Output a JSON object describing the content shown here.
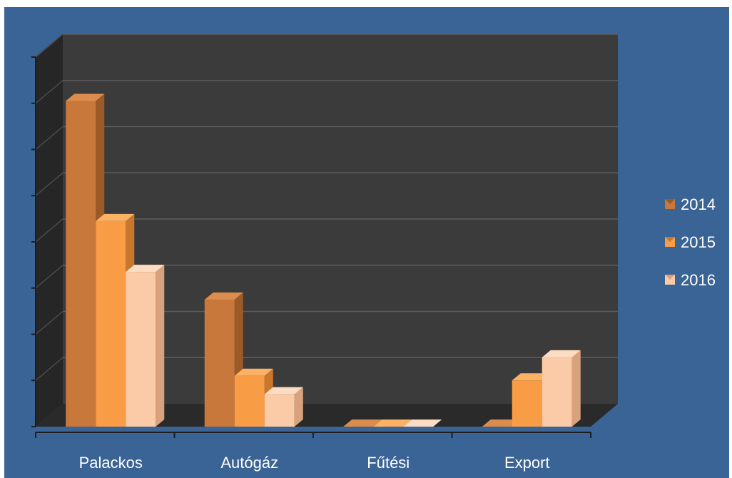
{
  "chart_data": {
    "type": "bar",
    "title": "",
    "xlabel": "",
    "ylabel": "",
    "categories": [
      "Palackos",
      "Autógáz",
      "Fűtési",
      "Export"
    ],
    "series": [
      {
        "name": "2014",
        "values": [
          7.05,
          2.75,
          0,
          0
        ]
      },
      {
        "name": "2015",
        "values": [
          4.45,
          1.1,
          0,
          1.0
        ]
      },
      {
        "name": "2016",
        "values": [
          3.35,
          0.7,
          0,
          1.5
        ]
      }
    ],
    "ylim": [
      0,
      8
    ],
    "grid": true,
    "three_d": true,
    "legend_position": "right",
    "colors": {
      "background": "#3a6396",
      "back_wall": "#3b3b3b",
      "floor": "#2a2a2a",
      "series": [
        "#c7783a",
        "#f89c45",
        "#fbcaa6"
      ],
      "series_side": [
        "#9b5a26",
        "#c9772c",
        "#d8a27c"
      ],
      "series_top": [
        "#dc8c4c",
        "#fbb265",
        "#fddcc4"
      ],
      "grid": "#5d5d5d",
      "text": "#ffffff"
    }
  }
}
